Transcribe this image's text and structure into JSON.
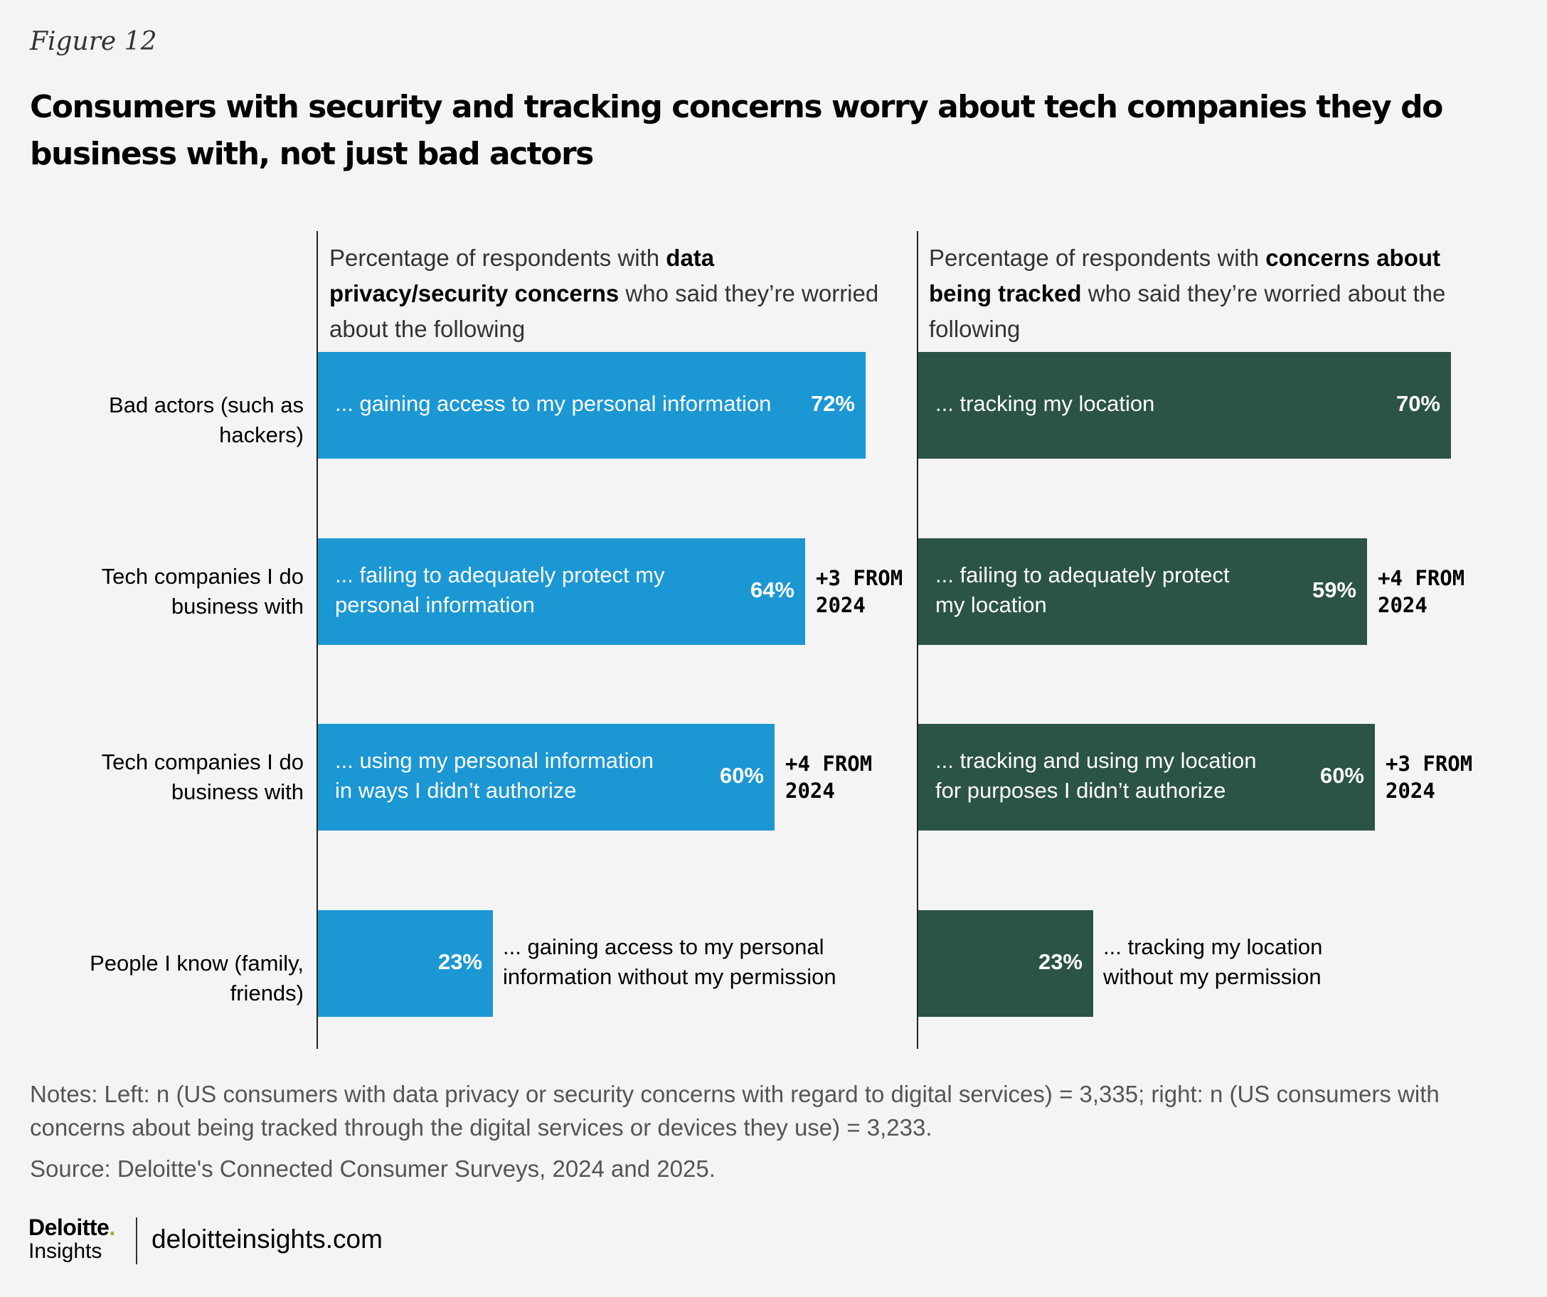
{
  "figure_label": "Figure 12",
  "title": "Consumers with security and tracking concerns worry about tech companies they do business with, not just bad actors",
  "colors": {
    "left": "#1b97d4",
    "right": "#2b5346",
    "axis": "#222222",
    "background": "#f4f4f4"
  },
  "panels": {
    "left": {
      "heading_pre": "Percentage of respondents with ",
      "heading_bold": "data privacy/security concerns",
      "heading_post": " who said they’re worried about the following"
    },
    "right": {
      "heading_pre": "Percentage of respondents with ",
      "heading_bold": "concerns about being tracked",
      "heading_post": " who said they’re worried about the following"
    }
  },
  "chart_data": {
    "type": "bar",
    "orientation": "horizontal",
    "categories": [
      "Bad actors (such as hackers)",
      "Tech companies I do business with",
      "Tech companies I do business with",
      "People I know (family, friends)"
    ],
    "xlim": [
      0,
      100
    ],
    "series": [
      {
        "name": "Data privacy/security concerns",
        "values": [
          72,
          64,
          60,
          23
        ],
        "value_labels": [
          "72%",
          "64%",
          "60%",
          "23%"
        ],
        "descriptions": [
          [
            "... gaining access to my personal information"
          ],
          [
            "... failing to adequately protect my",
            "personal information"
          ],
          [
            "... using my personal information",
            "in ways I didn’t authorize"
          ],
          [
            "... gaining access to my personal",
            "information without my permission"
          ]
        ],
        "annotations": [
          "",
          "+3 FROM\n2024",
          "+4 FROM\n2024",
          ""
        ]
      },
      {
        "name": "Concerns about being tracked",
        "values": [
          70,
          59,
          60,
          23
        ],
        "value_labels": [
          "70%",
          "59%",
          "60%",
          "23%"
        ],
        "descriptions": [
          [
            "... tracking my location"
          ],
          [
            "... failing to adequately protect",
            "my location"
          ],
          [
            "... tracking and using my location",
            "for purposes I didn’t authorize"
          ],
          [
            "... tracking my location",
            "without  my permission"
          ]
        ],
        "annotations": [
          "",
          "+4 FROM\n2024",
          "+3 FROM\n2024",
          ""
        ]
      }
    ]
  },
  "notes": "Notes: Left: n (US consumers with data privacy or security concerns with regard to digital services) = 3,335; right: n (US consumers with concerns about being tracked through the digital services or devices they use) = 3,233.",
  "source": "Source: Deloitte's Connected Consumer Surveys, 2024 and 2025.",
  "brand": {
    "name": "Deloitte",
    "dot": ".",
    "sub": "Insights",
    "site": "deloitteinsights.com"
  }
}
